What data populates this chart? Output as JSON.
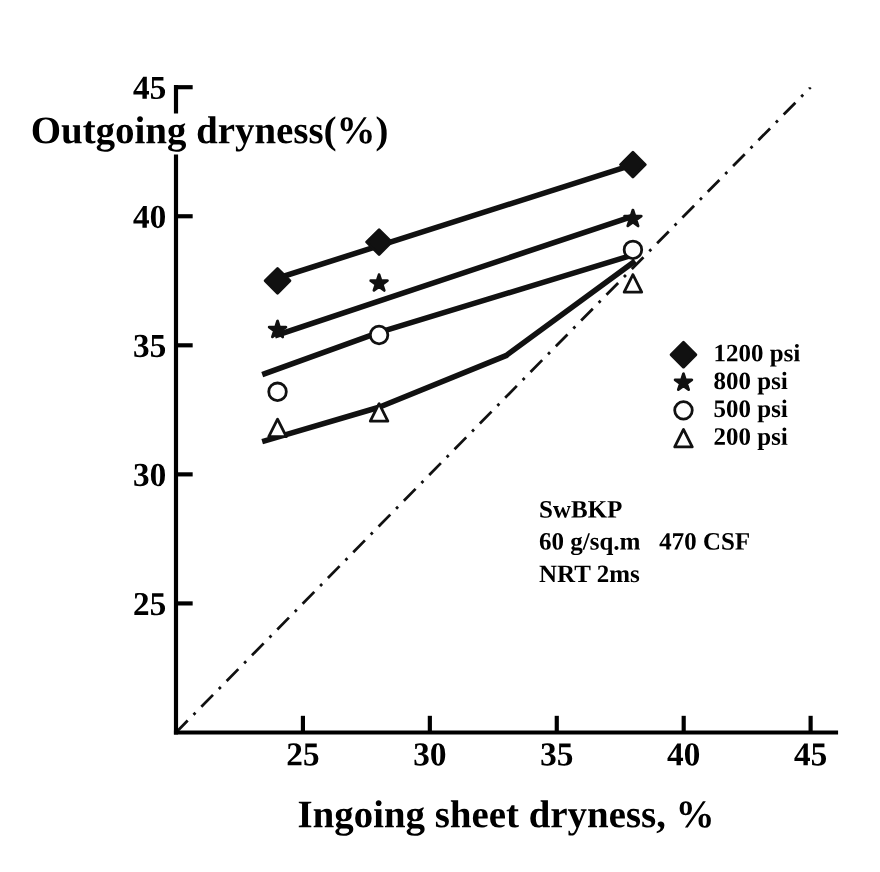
{
  "chart_data": {
    "type": "scatter",
    "xlabel": "Ingoing sheet dryness, %",
    "ylabel": "Outgoing dryness(%)",
    "xlim": [
      20,
      46
    ],
    "ylim": [
      20,
      45
    ],
    "xticks": [
      25,
      30,
      35,
      40,
      45
    ],
    "yticks": [
      25,
      30,
      35,
      40,
      45
    ],
    "grid": false,
    "legend": "right",
    "annotations": [
      "SwBKP",
      "60 g/sq.m   470 CSF",
      "NRT 2ms"
    ],
    "series": [
      {
        "name": "1200 psi",
        "marker": "diamond",
        "color": "#111111",
        "x": [
          24,
          28,
          38
        ],
        "values": [
          37.5,
          39.0,
          42.0
        ]
      },
      {
        "name": "800 psi",
        "marker": "star",
        "color": "#111111",
        "x": [
          24,
          28,
          38
        ],
        "values": [
          35.6,
          37.4,
          39.9
        ]
      },
      {
        "name": "500 psi",
        "marker": "circle",
        "color": "#111111",
        "x": [
          24,
          28,
          38
        ],
        "values": [
          33.2,
          35.4,
          38.7
        ]
      },
      {
        "name": "200 psi",
        "marker": "triangle",
        "color": "#111111",
        "x": [
          24,
          28,
          38
        ],
        "values": [
          31.8,
          32.4,
          37.4
        ]
      },
      {
        "type": "line",
        "line_style": "solid",
        "color": "#111111",
        "x": [
          24,
          38
        ],
        "values": [
          37.6,
          42.0
        ]
      },
      {
        "type": "line",
        "line_style": "solid",
        "color": "#111111",
        "x": [
          24,
          38
        ],
        "values": [
          35.4,
          40.0
        ]
      },
      {
        "type": "line",
        "line_style": "solid",
        "color": "#111111",
        "x": [
          23.5,
          28,
          33,
          38
        ],
        "values": [
          33.9,
          35.5,
          37.0,
          38.5
        ]
      },
      {
        "type": "line",
        "line_style": "solid",
        "color": "#111111",
        "x": [
          23.5,
          28,
          33,
          38
        ],
        "values": [
          31.3,
          32.6,
          34.6,
          38.2
        ]
      },
      {
        "type": "line",
        "line_style": "dashed",
        "color": "#111111",
        "x": [
          20,
          45
        ],
        "values": [
          20,
          45
        ]
      }
    ]
  }
}
